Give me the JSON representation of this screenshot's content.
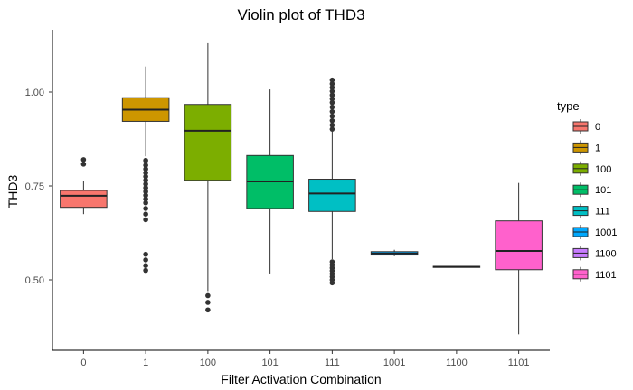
{
  "chart_data": {
    "type": "box",
    "title": "Violin plot of THD3",
    "xlabel": "Filter Activation Combination",
    "ylabel": "THD3",
    "ylim": [
      0.33,
      1.16
    ],
    "yticks": [
      0.5,
      0.75,
      1.0
    ],
    "ytick_labels": [
      "0.50",
      "0.75",
      "1.00"
    ],
    "grid": false,
    "legend": {
      "title": "type",
      "position": "right"
    },
    "series": [
      {
        "name": "0",
        "color": "#F8766D",
        "q1": 0.693,
        "median": 0.724,
        "q3": 0.738,
        "whisker_low": 0.675,
        "whisker_high": 0.763,
        "outliers": [
          0.808,
          0.82
        ]
      },
      {
        "name": "1",
        "color": "#CD9600",
        "q1": 0.922,
        "median": 0.953,
        "q3": 0.985,
        "whisker_low": 0.829,
        "whisker_high": 1.068,
        "outliers": [
          0.818,
          0.805,
          0.795,
          0.785,
          0.775,
          0.765,
          0.755,
          0.745,
          0.735,
          0.725,
          0.715,
          0.705,
          0.69,
          0.675,
          0.66,
          0.568,
          0.553,
          0.538,
          0.525
        ]
      },
      {
        "name": "100",
        "color": "#7CAE00",
        "q1": 0.765,
        "median": 0.897,
        "q3": 0.967,
        "whisker_low": 0.47,
        "whisker_high": 1.13,
        "outliers": [
          0.458,
          0.44,
          0.42
        ]
      },
      {
        "name": "101",
        "color": "#00BE67",
        "q1": 0.69,
        "median": 0.762,
        "q3": 0.831,
        "whisker_low": 0.517,
        "whisker_high": 1.007,
        "outliers": []
      },
      {
        "name": "111",
        "color": "#00BFC4",
        "q1": 0.682,
        "median": 0.73,
        "q3": 0.768,
        "whisker_low": 0.555,
        "whisker_high": 0.895,
        "outliers": [
          1.032,
          1.022,
          1.012,
          1.002,
          0.992,
          0.982,
          0.972,
          0.96,
          0.948,
          0.936,
          0.924,
          0.912,
          0.901,
          0.548,
          0.54,
          0.532,
          0.524,
          0.516,
          0.508,
          0.5,
          0.492
        ]
      },
      {
        "name": "1001",
        "color": "#00A9FF",
        "q1": 0.566,
        "median": 0.57,
        "q3": 0.575,
        "whisker_low": 0.563,
        "whisker_high": 0.58,
        "outliers": []
      },
      {
        "name": "1100",
        "color": "#C77CFF",
        "q1": 0.534,
        "median": 0.535,
        "q3": 0.536,
        "whisker_low": 0.534,
        "whisker_high": 0.536,
        "outliers": []
      },
      {
        "name": "1101",
        "color": "#FF61CC",
        "q1": 0.527,
        "median": 0.577,
        "q3": 0.657,
        "whisker_low": 0.355,
        "whisker_high": 0.758,
        "outliers": []
      }
    ]
  }
}
